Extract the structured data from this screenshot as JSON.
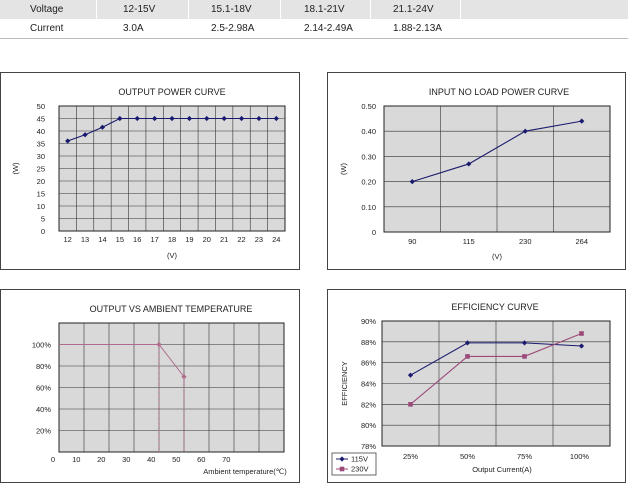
{
  "spec_table": {
    "rows": [
      {
        "label": "Voltage",
        "cells": [
          "12-15V",
          "15.1-18V",
          "18.1-21V",
          "21.1-24V"
        ]
      },
      {
        "label": "Current",
        "cells": [
          "3.0A",
          "2.5-2.98A",
          "2.14-2.49A",
          "1.88-2.13A"
        ]
      }
    ]
  },
  "colors": {
    "plot_bg": "#d9d9d9",
    "grid": "#333333",
    "series_115v": "#1a1a6e",
    "series_230v": "#9c4a7a",
    "derating": "#b06a8c"
  },
  "chart_data": [
    {
      "type": "line",
      "title": "OUTPUT POWER CURVE",
      "xlabel": "(V)",
      "ylabel": "(W)",
      "x": [
        12,
        13,
        14,
        15,
        16,
        17,
        18,
        19,
        20,
        21,
        22,
        23,
        24
      ],
      "x_tick_labels": [
        "12",
        "13",
        "14",
        "15",
        "16",
        "17",
        "18",
        "19",
        "20",
        "21",
        "22",
        "23",
        "24"
      ],
      "y_tick_labels": [
        "0",
        "5",
        "10",
        "15",
        "20",
        "25",
        "30",
        "35",
        "40",
        "45",
        "50"
      ],
      "ylim": [
        0,
        50
      ],
      "series": [
        {
          "values": [
            36,
            38.5,
            41.5,
            45,
            45,
            45,
            45,
            45,
            45,
            45,
            45,
            45,
            45
          ]
        }
      ],
      "grid": true
    },
    {
      "type": "line",
      "title": "INPUT NO LOAD POWER CURVE",
      "xlabel": "(V)",
      "ylabel": "(W)",
      "categories": [
        "90",
        "115",
        "230",
        "264"
      ],
      "y_tick_labels": [
        "0",
        "0.10",
        "0.20",
        "0.30",
        "0.40",
        "0.50"
      ],
      "ylim": [
        0,
        0.5
      ],
      "series": [
        {
          "values": [
            0.2,
            0.27,
            0.4,
            0.44
          ]
        }
      ],
      "grid": true
    },
    {
      "type": "line",
      "title": "OUTPUT VS AMBIENT TEMPERATURE",
      "xlabel": "Ambient temperature(℃)",
      "ylabel": "",
      "x_tick_labels": [
        "0",
        "10",
        "20",
        "30",
        "40",
        "50",
        "60",
        "70"
      ],
      "y_tick_labels": [
        "20%",
        "40%",
        "60%",
        "80%",
        "100%"
      ],
      "xlim": [
        0,
        80
      ],
      "ylim": [
        0,
        120
      ],
      "series": [
        {
          "x": [
            40,
            50
          ],
          "values": [
            100,
            70
          ]
        }
      ],
      "grid": true
    },
    {
      "type": "line",
      "title": "EFFICIENCY CURVE",
      "xlabel": "Output Current(A)",
      "ylabel": "EFFICIENCY",
      "categories": [
        "25%",
        "50%",
        "75%",
        "100%"
      ],
      "y_tick_labels": [
        "78%",
        "80%",
        "82%",
        "84%",
        "86%",
        "88%",
        "90%"
      ],
      "ylim": [
        78,
        90
      ],
      "series": [
        {
          "name": "115V",
          "values": [
            84.8,
            87.9,
            87.9,
            87.6
          ]
        },
        {
          "name": "230V",
          "values": [
            82,
            86.6,
            86.6,
            88.8
          ]
        }
      ],
      "legend": "bottom-left",
      "grid": true
    }
  ]
}
